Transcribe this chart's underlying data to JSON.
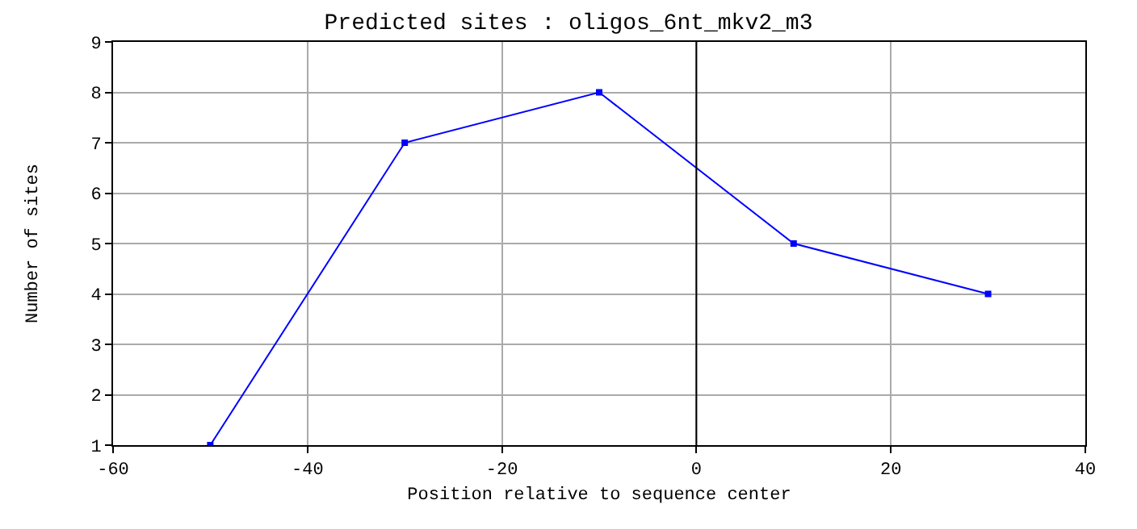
{
  "chart_data": {
    "type": "line",
    "title": "Predicted sites : oligos_6nt_mkv2_m3",
    "xlabel": "Position relative to sequence center",
    "ylabel": "Number of sites",
    "x": [
      -50,
      -30,
      -10,
      10,
      30
    ],
    "series": [
      {
        "color": "#0000ff",
        "values": [
          1,
          7,
          8,
          5,
          4
        ]
      }
    ],
    "xlim": [
      -60,
      40
    ],
    "xticks": [
      -60,
      -40,
      -20,
      0,
      20,
      40
    ],
    "ylim": [
      1,
      9
    ],
    "yticks": [
      1,
      2,
      3,
      4,
      5,
      6,
      7,
      8,
      9
    ],
    "grid": true,
    "marker": "square",
    "line_style": "solid",
    "ref_lines": [
      {
        "axis": "x",
        "value": 0,
        "color": "#000000"
      }
    ]
  }
}
